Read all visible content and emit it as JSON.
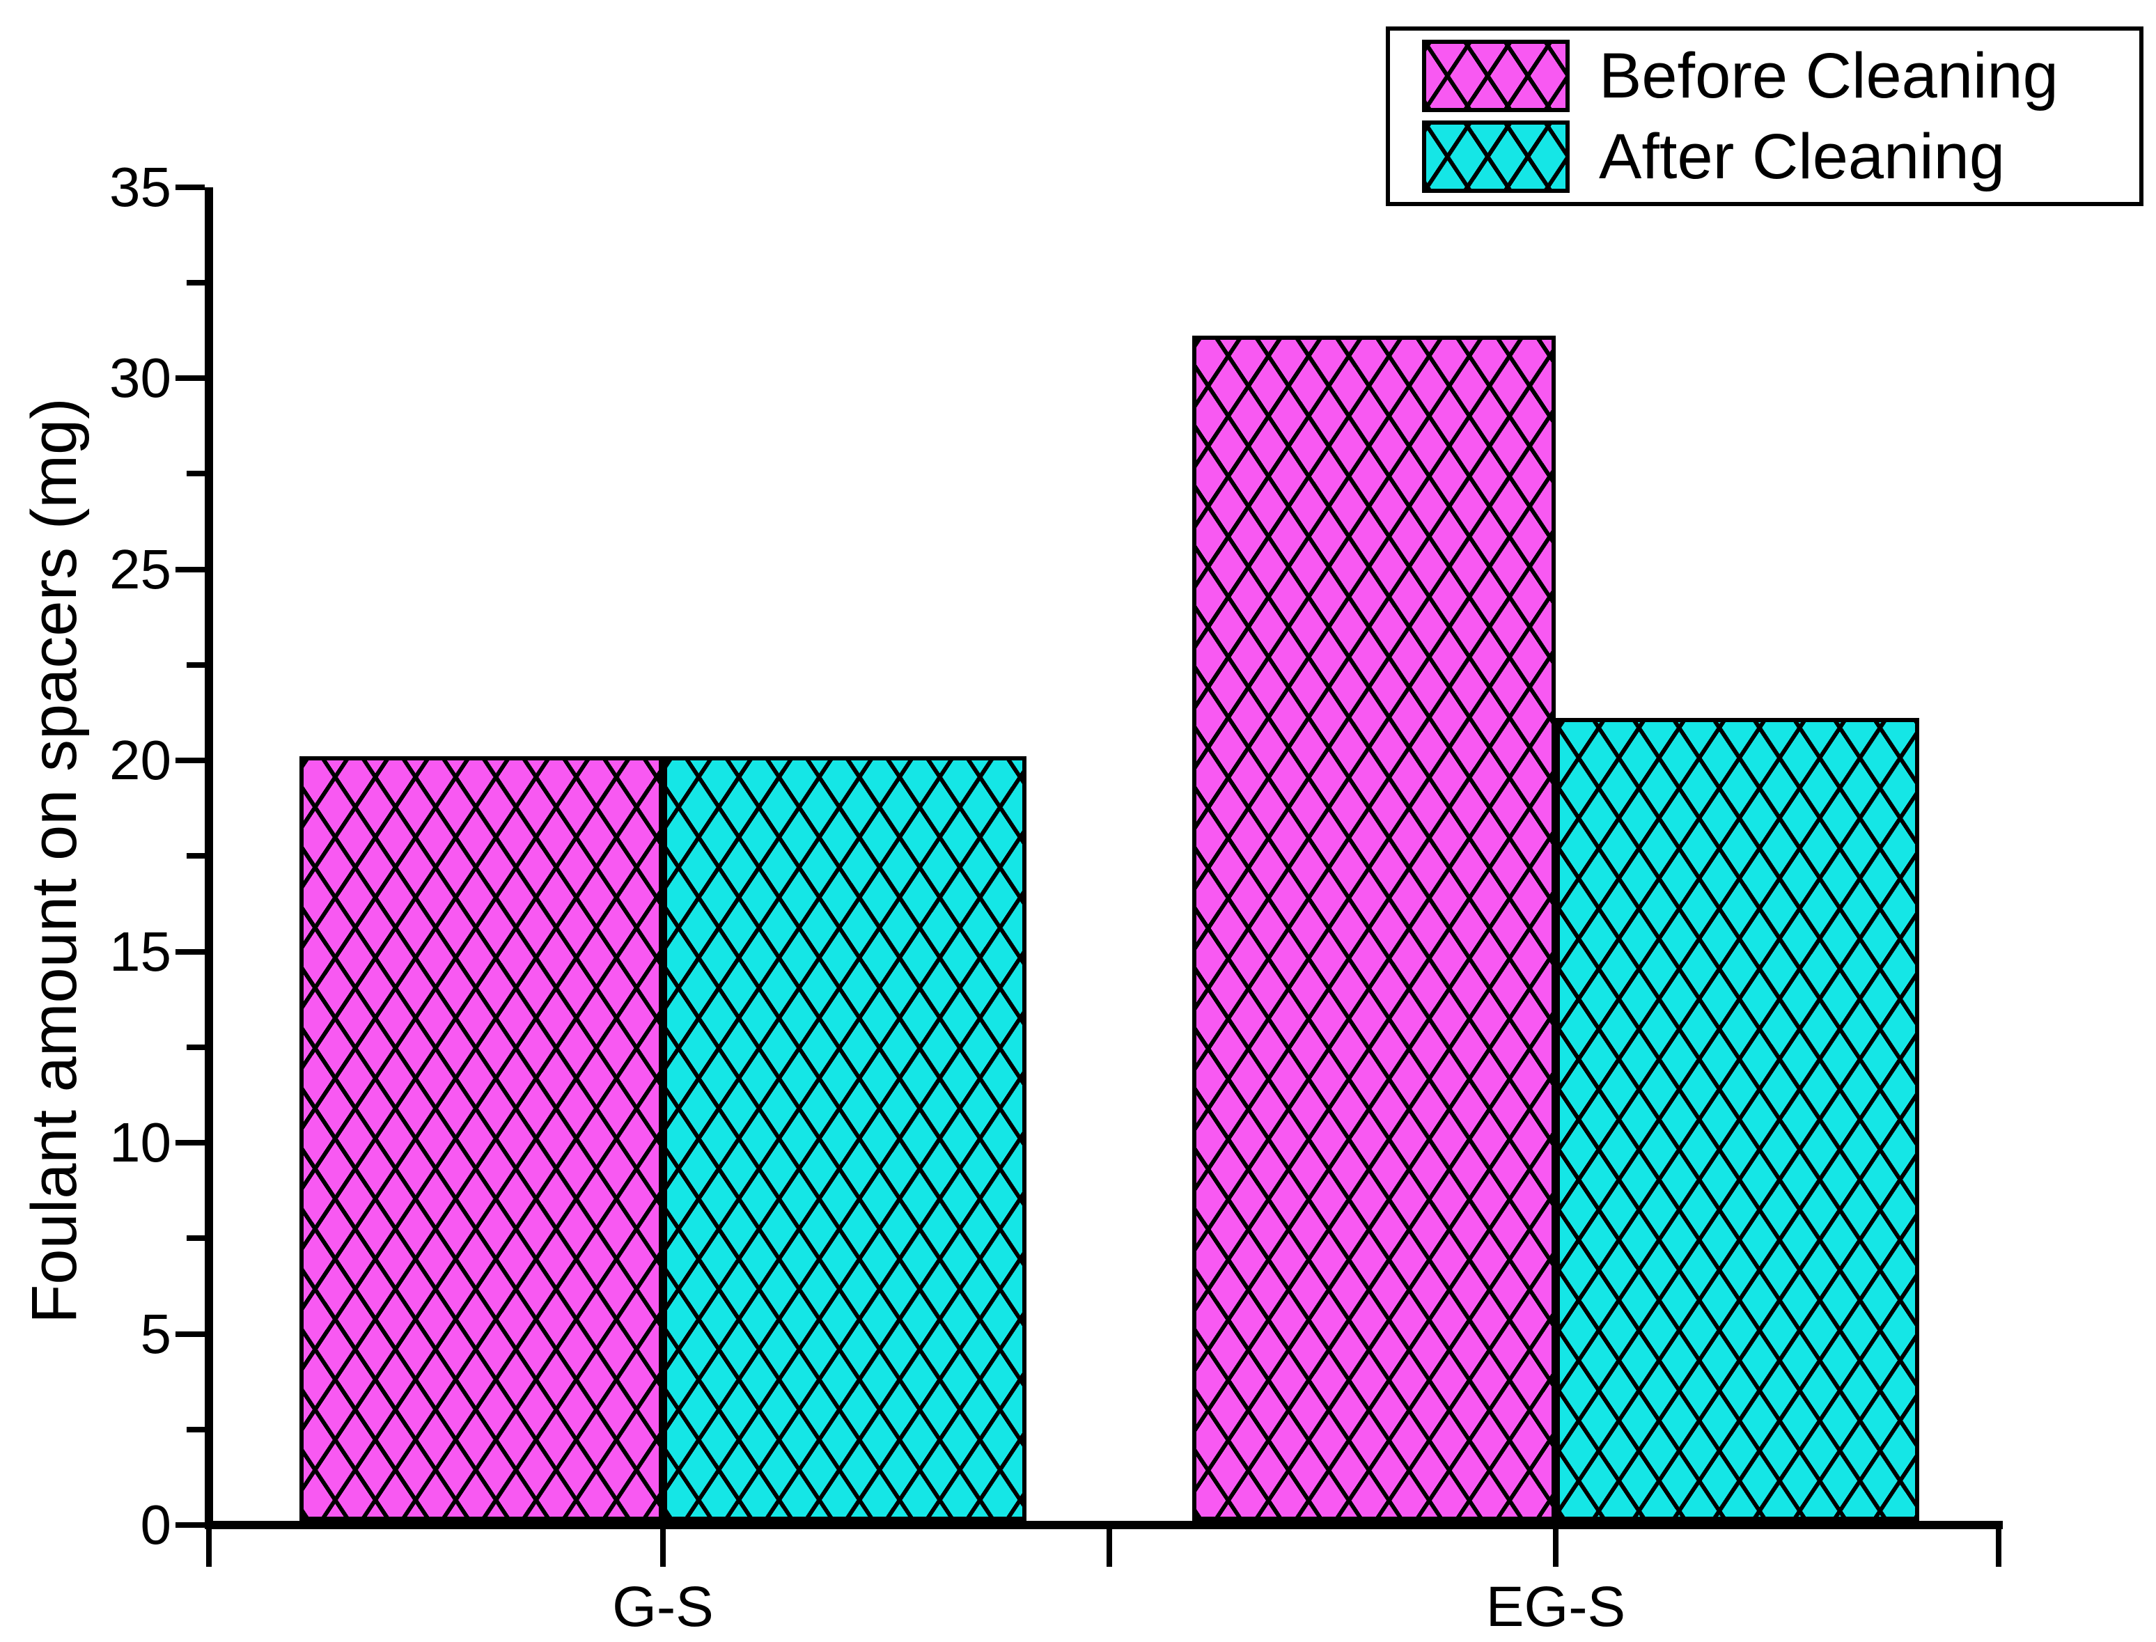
{
  "page": {
    "background": "#ffffff",
    "axis_color": "#000000"
  },
  "chart_data": {
    "type": "bar",
    "title": "",
    "xlabel": "",
    "ylabel": "Foulant amount on spacers (mg)",
    "categories": [
      "G-S",
      "EG-S"
    ],
    "series": [
      {
        "name": "Before Cleaning",
        "values": [
          20,
          31
        ],
        "color": "#F859F2",
        "pattern": "black-crosshatch"
      },
      {
        "name": "After Cleaning",
        "values": [
          20,
          21
        ],
        "color": "#15E6E6",
        "pattern": "black-crosshatch"
      }
    ],
    "y_axis": {
      "min": 0,
      "max": 35,
      "major_ticks": [
        0,
        5,
        10,
        15,
        20,
        25,
        30,
        35
      ],
      "minor_ticks": [
        2.5,
        7.5,
        12.5,
        17.5,
        22.5,
        27.5,
        32.5
      ]
    },
    "grid": false,
    "legend_position": "top-right",
    "bar_outline_color": "#000000"
  }
}
